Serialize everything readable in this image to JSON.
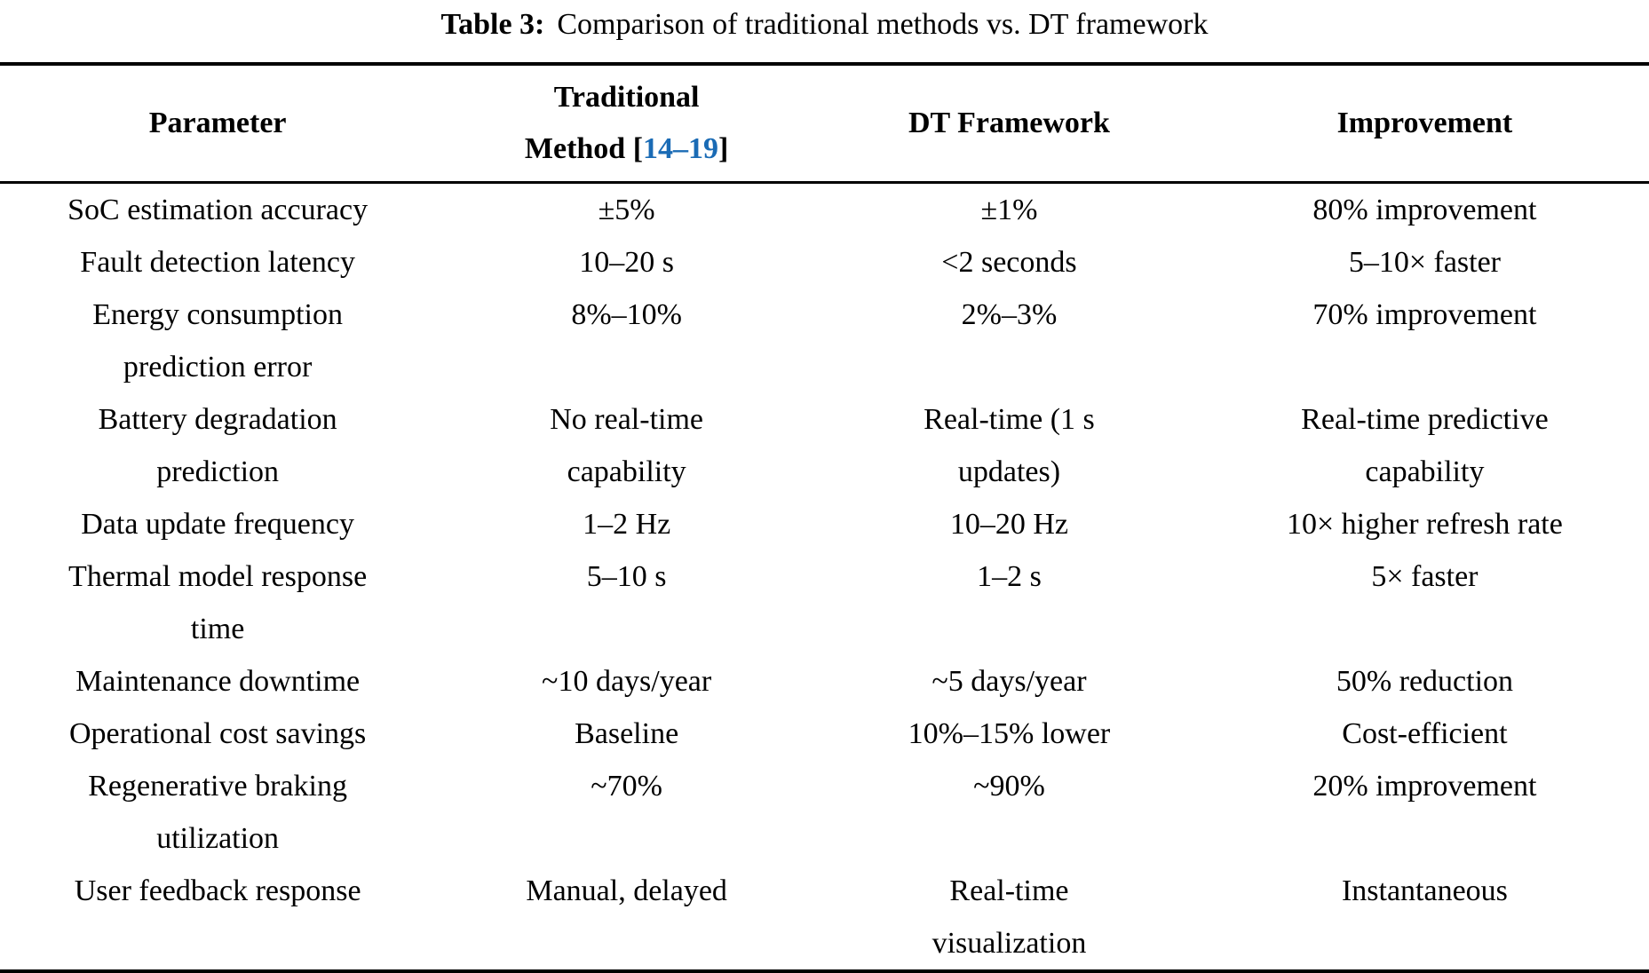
{
  "caption": {
    "label": "Table 3:",
    "text": "Comparison of traditional methods vs. DT framework"
  },
  "colors": {
    "text": "#000000",
    "citation_link": "#1a6bb5",
    "background": "#ffffff"
  },
  "table": {
    "header": {
      "col1": "Parameter",
      "col2_line1": "Traditional",
      "col2_pre": "Method [",
      "col2_link": "14–19",
      "col2_post": "]",
      "col3": "DT Framework",
      "col4": "Improvement"
    },
    "rows": [
      [
        "SoC estimation accuracy",
        "±5%",
        "±1%",
        "80% improvement"
      ],
      [
        "Fault detection latency",
        "10–20 s",
        "<2 seconds",
        "5–10× faster"
      ],
      [
        "Energy consumption\nprediction error",
        "8%–10%",
        "2%–3%",
        "70% improvement"
      ],
      [
        "Battery degradation\nprediction",
        "No real-time\ncapability",
        "Real-time (1 s\nupdates)",
        "Real-time predictive\ncapability"
      ],
      [
        "Data update frequency",
        "1–2 Hz",
        "10–20 Hz",
        "10× higher refresh rate"
      ],
      [
        "Thermal model response\ntime",
        "5–10 s",
        "1–2 s",
        "5× faster"
      ],
      [
        "Maintenance downtime",
        "~10 days/year",
        "~5 days/year",
        "50% reduction"
      ],
      [
        "Operational cost savings",
        "Baseline",
        "10%–15% lower",
        "Cost-efficient"
      ],
      [
        "Regenerative braking\nutilization",
        "~70%",
        "~90%",
        "20% improvement"
      ],
      [
        "User feedback response",
        "Manual, delayed",
        "Real-time\nvisualization",
        "Instantaneous"
      ]
    ]
  }
}
